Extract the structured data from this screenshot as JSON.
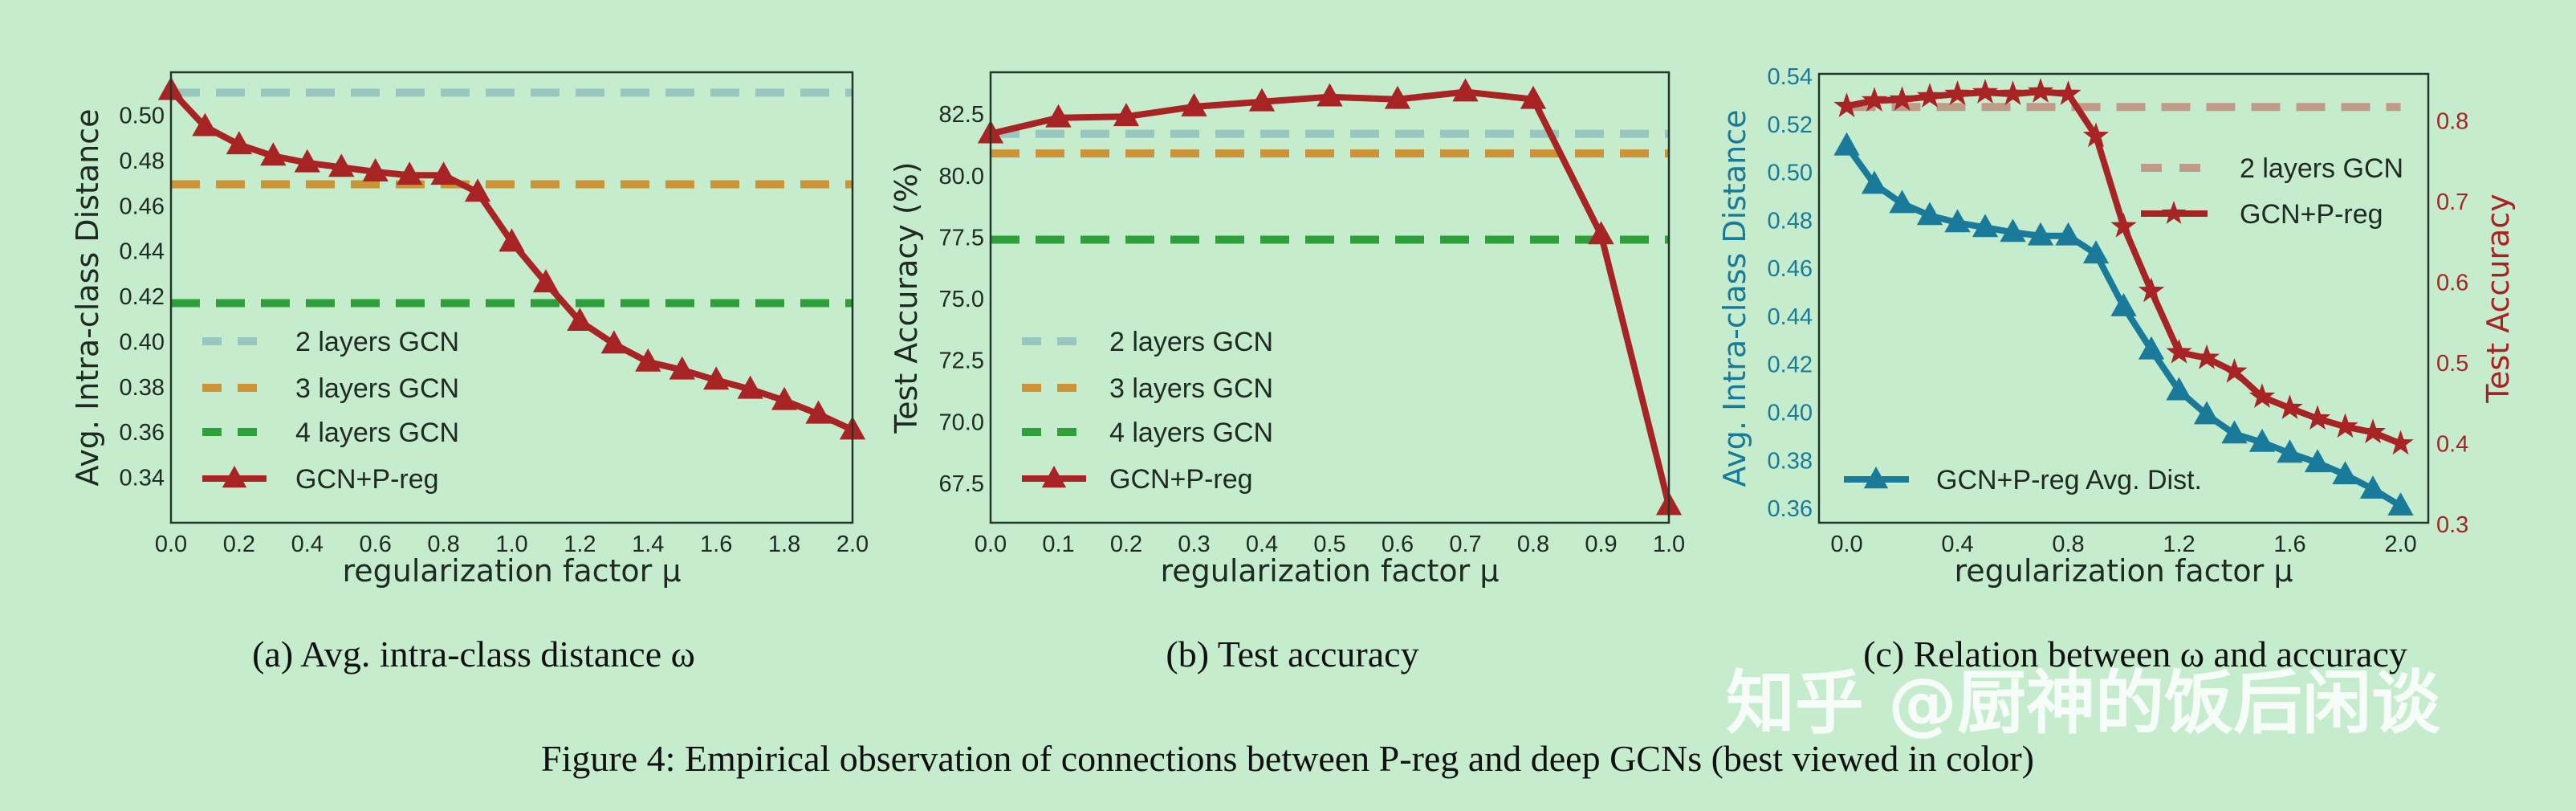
{
  "chart_data": [
    {
      "type": "line",
      "panel_caption": "(a) Avg. intra-class distance ω",
      "xlabel": "regularization factor μ",
      "ylabel": "Avg. Intra-class Distance",
      "xlim": [
        0,
        2.0
      ],
      "ylim": [
        0.32,
        0.519
      ],
      "xticks": [
        "0.0",
        "0.2",
        "0.4",
        "0.6",
        "0.8",
        "1.0",
        "1.2",
        "1.4",
        "1.6",
        "1.8",
        "2.0"
      ],
      "yticks": [
        "0.34",
        "0.36",
        "0.38",
        "0.40",
        "0.42",
        "0.44",
        "0.46",
        "0.48",
        "0.50"
      ],
      "grid": false,
      "legend_placement": "lower-left",
      "baselines": [
        {
          "name": "2 layers GCN",
          "value": 0.51,
          "color": "#98c6c0"
        },
        {
          "name": "3 layers GCN",
          "value": 0.4695,
          "color": "#cc9436"
        },
        {
          "name": "4 layers GCN",
          "value": 0.417,
          "color": "#2ea03a"
        }
      ],
      "series": [
        {
          "name": "GCN+P-reg",
          "marker": "triangle",
          "color": "#a82424",
          "x": [
            0.0,
            0.1,
            0.2,
            0.3,
            0.4,
            0.5,
            0.6,
            0.7,
            0.8,
            0.9,
            1.0,
            1.1,
            1.2,
            1.3,
            1.4,
            1.5,
            1.6,
            1.7,
            1.8,
            1.9,
            2.0
          ],
          "y": [
            0.511,
            0.495,
            0.487,
            0.482,
            0.479,
            0.477,
            0.475,
            0.4735,
            0.4735,
            0.466,
            0.444,
            0.426,
            0.409,
            0.399,
            0.391,
            0.3875,
            0.383,
            0.379,
            0.374,
            0.368,
            0.361
          ]
        }
      ]
    },
    {
      "type": "line",
      "panel_caption": "(b) Test accuracy",
      "xlabel": "regularization factor μ",
      "ylabel": "Test Accuracy (%)",
      "xlim": [
        0,
        1.0
      ],
      "ylim": [
        65.9,
        84.2
      ],
      "xticks": [
        "0.0",
        "0.1",
        "0.2",
        "0.3",
        "0.4",
        "0.5",
        "0.6",
        "0.7",
        "0.8",
        "0.9",
        "1.0"
      ],
      "yticks": [
        "67.5",
        "70.0",
        "72.5",
        "75.0",
        "77.5",
        "80.0",
        "82.5"
      ],
      "grid": false,
      "legend_placement": "lower-left",
      "baselines": [
        {
          "name": "2 layers GCN",
          "value": 81.7,
          "color": "#98c6c0"
        },
        {
          "name": "3 layers GCN",
          "value": 80.9,
          "color": "#cc9436"
        },
        {
          "name": "4 layers GCN",
          "value": 77.4,
          "color": "#2ea03a"
        }
      ],
      "series": [
        {
          "name": "GCN+P-reg",
          "marker": "triangle",
          "color": "#a82424",
          "x": [
            0.0,
            0.1,
            0.2,
            0.3,
            0.4,
            0.5,
            0.6,
            0.7,
            0.8,
            0.9,
            1.0
          ],
          "y": [
            81.7,
            82.35,
            82.4,
            82.8,
            83.0,
            83.2,
            83.1,
            83.4,
            83.1,
            77.6,
            66.6
          ]
        }
      ]
    },
    {
      "type": "line",
      "panel_caption": "(c) Relation between ω and accuracy",
      "xlabel": "regularization factor μ",
      "ylabel": "Avg. Intra-class Distance",
      "ylabel_right": "Test Accuracy",
      "xlim": [
        -0.1,
        2.1
      ],
      "ylim": [
        0.354,
        0.541
      ],
      "ylim_right": [
        0.302,
        0.858
      ],
      "xticks": [
        "0.0",
        "0.4",
        "0.8",
        "1.2",
        "1.6",
        "2.0"
      ],
      "yticks": [
        "0.36",
        "0.38",
        "0.40",
        "0.42",
        "0.44",
        "0.46",
        "0.48",
        "0.50",
        "0.52",
        "0.54"
      ],
      "yticks_right": [
        "0.3",
        "0.4",
        "0.5",
        "0.6",
        "0.7",
        "0.8"
      ],
      "left_color": "#1a7a9a",
      "right_color": "#a82424",
      "grid": false,
      "baselines": [
        {
          "name": "2 layers GCN",
          "value": 0.817,
          "axis": "right",
          "color": "#c09c88"
        }
      ],
      "series": [
        {
          "name": "GCN+P-reg Avg. Dist.",
          "axis": "left",
          "marker": "triangle",
          "color": "#1a7a9a",
          "x": [
            0.0,
            0.1,
            0.2,
            0.3,
            0.4,
            0.5,
            0.6,
            0.7,
            0.8,
            0.9,
            1.0,
            1.1,
            1.2,
            1.3,
            1.4,
            1.5,
            1.6,
            1.7,
            1.8,
            1.9,
            2.0
          ],
          "y": [
            0.511,
            0.495,
            0.487,
            0.482,
            0.479,
            0.477,
            0.475,
            0.4735,
            0.4735,
            0.466,
            0.444,
            0.426,
            0.409,
            0.399,
            0.391,
            0.3875,
            0.383,
            0.379,
            0.374,
            0.368,
            0.361
          ]
        },
        {
          "name": "GCN+P-reg",
          "axis": "right",
          "marker": "star",
          "color": "#a82424",
          "x": [
            0.0,
            0.1,
            0.2,
            0.3,
            0.4,
            0.5,
            0.6,
            0.7,
            0.8,
            0.9,
            1.0,
            1.1,
            1.2,
            1.3,
            1.4,
            1.5,
            1.6,
            1.7,
            1.8,
            1.9,
            2.0
          ],
          "y": [
            0.818,
            0.825,
            0.826,
            0.83,
            0.833,
            0.835,
            0.833,
            0.836,
            0.833,
            0.781,
            0.669,
            0.589,
            0.513,
            0.506,
            0.489,
            0.458,
            0.444,
            0.431,
            0.421,
            0.414,
            0.4
          ]
        }
      ]
    }
  ],
  "figure_caption": "Figure 4: Empirical observation of connections between P-reg and deep GCNs (best viewed in color)",
  "watermark": "知乎 @厨神的饭后闲谈"
}
